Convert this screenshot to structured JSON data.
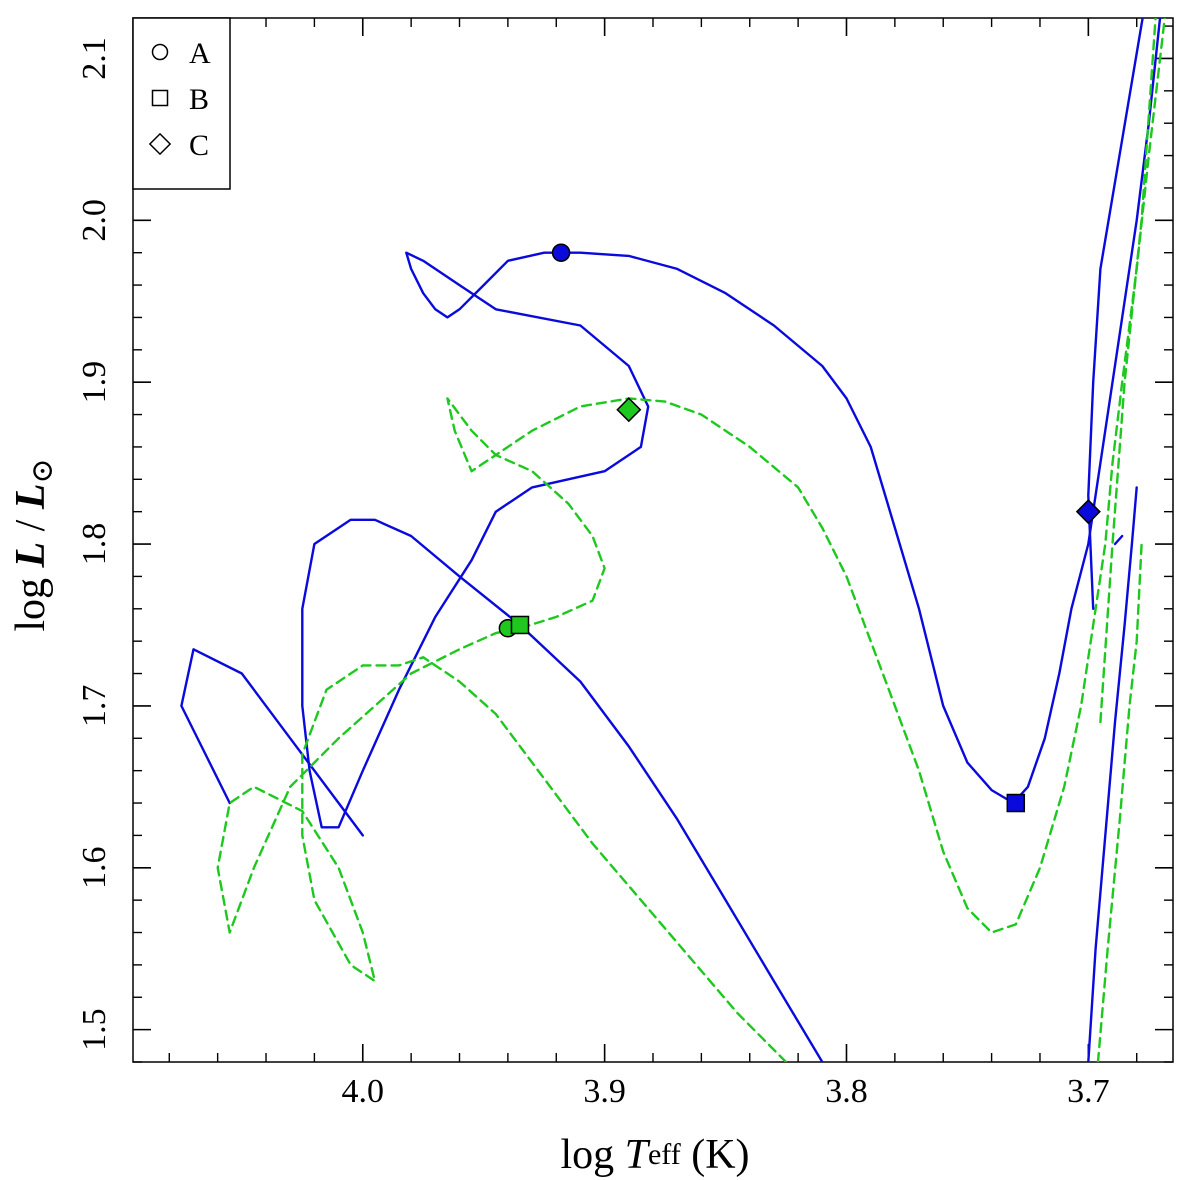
{
  "chart_data": {
    "type": "line",
    "title": "",
    "xlabel": {
      "prefix": "log ",
      "var": "T",
      "sub": "eff",
      "suffix": " (K)"
    },
    "ylabel": {
      "prefix": "log ",
      "var1": "L",
      "slash": " / ",
      "var2": "L",
      "sub": "⊙"
    },
    "xlim": [
      4.095,
      3.665
    ],
    "ylim": [
      1.48,
      2.125
    ],
    "x_reversed": true,
    "x_ticks": [
      {
        "value": 4.0,
        "label": "4.0"
      },
      {
        "value": 3.9,
        "label": "3.9"
      },
      {
        "value": 3.8,
        "label": "3.8"
      },
      {
        "value": 3.7,
        "label": "3.7"
      }
    ],
    "y_ticks": [
      {
        "value": 1.5,
        "label": "1.5"
      },
      {
        "value": 1.6,
        "label": "1.6"
      },
      {
        "value": 1.7,
        "label": "1.7"
      },
      {
        "value": 1.8,
        "label": "1.8"
      },
      {
        "value": 1.9,
        "label": "1.9"
      },
      {
        "value": 2.0,
        "label": "2.0"
      },
      {
        "value": 2.1,
        "label": "2.1"
      }
    ],
    "x_minor_step": 0.02,
    "y_minor_step": 0.02,
    "grid": false,
    "legend": {
      "position": "top-left",
      "entries": [
        {
          "label": "A",
          "marker": "circle"
        },
        {
          "label": "B",
          "marker": "square"
        },
        {
          "label": "C",
          "marker": "diamond"
        }
      ]
    },
    "series": [
      {
        "name": "blue track",
        "color": "#0a0adc",
        "dash": "solid",
        "segments": [
          [
            [
              3.81,
              1.48
            ],
            [
              3.83,
              1.53
            ],
            [
              3.85,
              1.58
            ],
            [
              3.87,
              1.63
            ],
            [
              3.89,
              1.675
            ],
            [
              3.91,
              1.715
            ],
            [
              3.935,
              1.75
            ],
            [
              3.96,
              1.78
            ],
            [
              3.98,
              1.805
            ],
            [
              3.995,
              1.815
            ],
            [
              4.005,
              1.815
            ],
            [
              4.02,
              1.8
            ],
            [
              4.025,
              1.76
            ],
            [
              4.025,
              1.7
            ],
            [
              4.022,
              1.66
            ],
            [
              4.017,
              1.625
            ],
            [
              4.01,
              1.625
            ],
            [
              4.0,
              1.66
            ],
            [
              3.985,
              1.71
            ],
            [
              3.97,
              1.755
            ],
            [
              3.955,
              1.79
            ],
            [
              3.945,
              1.82
            ],
            [
              3.93,
              1.835
            ],
            [
              3.915,
              1.84
            ],
            [
              3.9,
              1.845
            ],
            [
              3.885,
              1.86
            ],
            [
              3.882,
              1.885
            ],
            [
              3.89,
              1.91
            ],
            [
              3.91,
              1.935
            ],
            [
              3.945,
              1.945
            ],
            [
              3.96,
              1.96
            ],
            [
              3.975,
              1.975
            ],
            [
              3.982,
              1.98
            ],
            [
              3.98,
              1.97
            ],
            [
              3.975,
              1.955
            ],
            [
              3.97,
              1.945
            ],
            [
              3.965,
              1.94
            ],
            [
              3.96,
              1.945
            ],
            [
              3.95,
              1.96
            ],
            [
              3.94,
              1.975
            ],
            [
              3.925,
              1.98
            ],
            [
              3.91,
              1.98
            ],
            [
              3.89,
              1.978
            ],
            [
              3.87,
              1.97
            ],
            [
              3.85,
              1.955
            ],
            [
              3.83,
              1.935
            ],
            [
              3.81,
              1.91
            ],
            [
              3.8,
              1.89
            ],
            [
              3.79,
              1.86
            ],
            [
              3.78,
              1.81
            ],
            [
              3.77,
              1.76
            ],
            [
              3.76,
              1.7
            ],
            [
              3.75,
              1.665
            ],
            [
              3.74,
              1.648
            ],
            [
              3.731,
              1.64
            ],
            [
              3.725,
              1.65
            ],
            [
              3.718,
              1.68
            ],
            [
              3.712,
              1.72
            ],
            [
              3.707,
              1.76
            ],
            [
              3.7,
              1.8
            ],
            [
              3.695,
              1.85
            ],
            [
              3.69,
              1.9
            ],
            [
              3.685,
              1.95
            ],
            [
              3.68,
              2.0
            ],
            [
              3.675,
              2.06
            ],
            [
              3.67,
              2.13
            ]
          ],
          [
            [
              3.698,
              1.76
            ],
            [
              3.7,
              1.83
            ],
            [
              3.698,
              1.9
            ],
            [
              3.695,
              1.97
            ],
            [
              3.686,
              2.05
            ],
            [
              3.677,
              2.13
            ]
          ],
          [
            [
              3.7,
              1.48
            ],
            [
              3.697,
              1.55
            ],
            [
              3.693,
              1.62
            ],
            [
              3.689,
              1.69
            ],
            [
              3.685,
              1.75
            ],
            [
              3.682,
              1.8
            ],
            [
              3.68,
              1.835
            ]
          ],
          [
            [
              3.689,
              1.8
            ],
            [
              3.686,
              1.805
            ]
          ],
          [
            [
              4.055,
              1.64
            ],
            [
              4.065,
              1.67
            ],
            [
              4.075,
              1.7
            ],
            [
              4.07,
              1.735
            ],
            [
              4.05,
              1.72
            ],
            [
              4.03,
              1.68
            ],
            [
              4.01,
              1.64
            ],
            [
              4.0,
              1.62
            ]
          ]
        ]
      },
      {
        "name": "green track",
        "color": "#1ec81e",
        "dash": "dashed",
        "segments": [
          [
            [
              3.825,
              1.48
            ],
            [
              3.845,
              1.51
            ],
            [
              3.865,
              1.545
            ],
            [
              3.885,
              1.58
            ],
            [
              3.905,
              1.615
            ],
            [
              3.925,
              1.655
            ],
            [
              3.945,
              1.695
            ],
            [
              3.96,
              1.715
            ],
            [
              3.975,
              1.73
            ],
            [
              3.985,
              1.725
            ],
            [
              4.0,
              1.725
            ],
            [
              4.015,
              1.71
            ],
            [
              4.025,
              1.67
            ],
            [
              4.025,
              1.62
            ],
            [
              4.02,
              1.58
            ],
            [
              4.005,
              1.54
            ],
            [
              3.995,
              1.53
            ],
            [
              4.0,
              1.56
            ],
            [
              4.01,
              1.6
            ],
            [
              4.025,
              1.635
            ],
            [
              4.045,
              1.65
            ],
            [
              4.055,
              1.64
            ],
            [
              4.06,
              1.6
            ],
            [
              4.055,
              1.56
            ],
            [
              4.045,
              1.6
            ],
            [
              4.03,
              1.65
            ],
            [
              4.01,
              1.68
            ],
            [
              3.995,
              1.7
            ],
            [
              3.98,
              1.72
            ],
            [
              3.96,
              1.735
            ],
            [
              3.945,
              1.745
            ],
            [
              3.935,
              1.748
            ],
            [
              3.92,
              1.755
            ],
            [
              3.905,
              1.765
            ],
            [
              3.9,
              1.785
            ],
            [
              3.905,
              1.805
            ],
            [
              3.915,
              1.825
            ],
            [
              3.93,
              1.845
            ],
            [
              3.945,
              1.855
            ],
            [
              3.955,
              1.845
            ],
            [
              3.962,
              1.87
            ],
            [
              3.965,
              1.89
            ],
            [
              3.955,
              1.87
            ],
            [
              3.945,
              1.855
            ],
            [
              3.93,
              1.87
            ],
            [
              3.91,
              1.885
            ],
            [
              3.89,
              1.89
            ],
            [
              3.875,
              1.888
            ],
            [
              3.86,
              1.88
            ],
            [
              3.84,
              1.86
            ],
            [
              3.82,
              1.835
            ],
            [
              3.81,
              1.81
            ],
            [
              3.8,
              1.78
            ],
            [
              3.79,
              1.74
            ],
            [
              3.78,
              1.7
            ],
            [
              3.77,
              1.66
            ],
            [
              3.76,
              1.61
            ],
            [
              3.75,
              1.575
            ],
            [
              3.74,
              1.56
            ],
            [
              3.73,
              1.565
            ],
            [
              3.72,
              1.6
            ],
            [
              3.71,
              1.65
            ],
            [
              3.703,
              1.7
            ],
            [
              3.698,
              1.75
            ],
            [
              3.693,
              1.8
            ],
            [
              3.69,
              1.85
            ],
            [
              3.686,
              1.9
            ],
            [
              3.68,
              1.97
            ],
            [
              3.675,
              2.04
            ],
            [
              3.668,
              2.13
            ]
          ],
          [
            [
              3.696,
              1.48
            ],
            [
              3.692,
              1.55
            ],
            [
              3.687,
              1.63
            ],
            [
              3.683,
              1.7
            ],
            [
              3.68,
              1.74
            ],
            [
              3.678,
              1.8
            ]
          ],
          [
            [
              3.695,
              1.69
            ],
            [
              3.69,
              1.8
            ],
            [
              3.685,
              1.9
            ],
            [
              3.678,
              2.0
            ],
            [
              3.672,
              2.13
            ]
          ]
        ]
      }
    ],
    "points": [
      {
        "series": "blue track",
        "label": "A",
        "marker": "circle",
        "x": 3.918,
        "y": 1.98
      },
      {
        "series": "blue track",
        "label": "B",
        "marker": "square",
        "x": 3.73,
        "y": 1.64
      },
      {
        "series": "blue track",
        "label": "C",
        "marker": "diamond",
        "x": 3.7,
        "y": 1.82
      },
      {
        "series": "green track",
        "label": "A",
        "marker": "circle",
        "x": 3.94,
        "y": 1.748
      },
      {
        "series": "green track",
        "label": "B",
        "marker": "square",
        "x": 3.935,
        "y": 1.75
      },
      {
        "series": "green track",
        "label": "C",
        "marker": "diamond",
        "x": 3.89,
        "y": 1.883
      }
    ]
  }
}
